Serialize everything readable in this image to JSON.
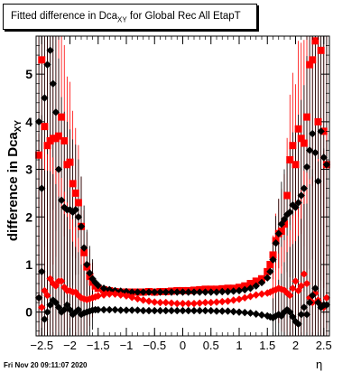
{
  "title": {
    "prefix": "Fitted difference in Dca",
    "sub": "XY",
    "suffix": " for Global Rec All EtapT"
  },
  "ylabel": {
    "prefix": "difference in Dca",
    "sub": "XY"
  },
  "xlabel": "η",
  "timestamp": "Fri Nov 20 09:11:07 2020",
  "chart_data": {
    "type": "scatter",
    "title": "Fitted difference in DcaXY for Global Rec All EtapT",
    "xlabel": "η",
    "ylabel": "difference in DcaXY",
    "xlim": [
      -2.6,
      2.6
    ],
    "ylim": [
      -0.5,
      5.8
    ],
    "xticks": [
      -2.5,
      -2,
      -1.5,
      -1,
      -0.5,
      0,
      0.5,
      1,
      1.5,
      2,
      2.5
    ],
    "xtick_labels": [
      "−2.5",
      "−2",
      "−1.5",
      "−1",
      "−0.5",
      "0",
      "0.5",
      "1",
      "1.5",
      "2",
      "2.5"
    ],
    "yticks": [
      0,
      1,
      2,
      3,
      4,
      5
    ],
    "ytick_labels": [
      "0",
      "1",
      "2",
      "3",
      "4",
      "5"
    ],
    "colors": {
      "red": "#ff0000",
      "black": "#000000"
    },
    "series": [
      {
        "color": "#ff0000",
        "marker": "square",
        "x": [
          -2.55,
          -2.5,
          -2.45,
          -2.4,
          -2.35,
          -2.3,
          -2.25,
          -2.2,
          -2.15,
          -2.1,
          -2.05,
          -2.0,
          -1.95,
          -1.9,
          -1.85,
          -1.8,
          -1.75,
          -1.7,
          -1.65,
          -1.6,
          -1.55,
          -1.5,
          -1.4,
          -1.3,
          -1.2,
          -1.1,
          -1.0,
          -0.9,
          -0.8,
          -0.7,
          -0.6,
          -0.5,
          -0.4,
          -0.3,
          -0.2,
          -0.1,
          0.0,
          0.1,
          0.2,
          0.3,
          0.4,
          0.5,
          0.6,
          0.7,
          0.8,
          0.9,
          1.0,
          1.1,
          1.2,
          1.3,
          1.4,
          1.5,
          1.55,
          1.6,
          1.65,
          1.7,
          1.75,
          1.8,
          1.85,
          1.9,
          1.95,
          2.0,
          2.05,
          2.1,
          2.15,
          2.2,
          2.25,
          2.3,
          2.35,
          2.4,
          2.45,
          2.5,
          2.55
        ],
        "y": [
          3.3,
          5.3,
          3.9,
          3.5,
          3.6,
          3.65,
          3.65,
          3.7,
          4.1,
          3.6,
          3.1,
          3.15,
          2.7,
          2.5,
          2.3,
          1.8,
          1.25,
          0.95,
          0.75,
          0.63,
          0.55,
          0.5,
          0.47,
          0.45,
          0.43,
          0.42,
          0.42,
          0.42,
          0.42,
          0.42,
          0.43,
          0.42,
          0.43,
          0.43,
          0.44,
          0.45,
          0.45,
          0.45,
          0.46,
          0.47,
          0.48,
          0.48,
          0.48,
          0.49,
          0.5,
          0.5,
          0.52,
          0.55,
          0.6,
          0.65,
          0.7,
          0.85,
          1.0,
          1.2,
          1.5,
          1.65,
          1.7,
          1.85,
          2.45,
          3.2,
          3.5,
          3.1,
          3.85,
          3.65,
          3.55,
          4.1,
          5.2,
          5.3,
          5.7,
          4.0,
          5.5,
          3.8,
          3.1
        ]
      },
      {
        "color": "#000000",
        "marker": "diamond",
        "x": [
          -2.55,
          -2.5,
          -2.45,
          -2.4,
          -2.35,
          -2.3,
          -2.25,
          -2.2,
          -2.15,
          -2.1,
          -2.05,
          -2.0,
          -1.95,
          -1.9,
          -1.85,
          -1.8,
          -1.75,
          -1.7,
          -1.65,
          -1.6,
          -1.55,
          -1.5,
          -1.4,
          -1.3,
          -1.2,
          -1.1,
          -1.0,
          -0.9,
          -0.8,
          -0.7,
          -0.6,
          -0.5,
          -0.4,
          -0.3,
          -0.2,
          -0.1,
          0.0,
          0.1,
          0.2,
          0.3,
          0.4,
          0.5,
          0.6,
          0.7,
          0.8,
          0.9,
          1.0,
          1.1,
          1.2,
          1.3,
          1.4,
          1.5,
          1.55,
          1.6,
          1.65,
          1.7,
          1.75,
          1.8,
          1.85,
          1.9,
          1.95,
          2.0,
          2.05,
          2.1,
          2.15,
          2.2,
          2.25,
          2.3,
          2.35,
          2.4,
          2.45,
          2.5,
          2.55
        ],
        "y": [
          4.0,
          2.6,
          4.5,
          5.2,
          5.5,
          4.8,
          4.2,
          3.0,
          2.35,
          2.2,
          2.15,
          2.15,
          2.1,
          2.15,
          2.0,
          1.8,
          1.35,
          1.0,
          0.82,
          0.7,
          0.62,
          0.56,
          0.5,
          0.47,
          0.45,
          0.44,
          0.43,
          0.42,
          0.42,
          0.42,
          0.42,
          0.42,
          0.42,
          0.42,
          0.42,
          0.42,
          0.42,
          0.42,
          0.42,
          0.42,
          0.42,
          0.42,
          0.42,
          0.43,
          0.43,
          0.44,
          0.45,
          0.47,
          0.5,
          0.55,
          0.62,
          0.72,
          0.85,
          1.1,
          1.45,
          1.65,
          1.85,
          1.95,
          2.05,
          2.1,
          2.25,
          2.2,
          2.3,
          2.45,
          2.6,
          3.05,
          3.4,
          3.75,
          3.35,
          2.75,
          3.8,
          3.25,
          3.1
        ]
      },
      {
        "color": "#ff0000",
        "marker": "diamond",
        "x": [
          -2.55,
          -2.5,
          -2.45,
          -2.4,
          -2.35,
          -2.3,
          -2.25,
          -2.2,
          -2.15,
          -2.1,
          -2.05,
          -2.0,
          -1.95,
          -1.9,
          -1.85,
          -1.8,
          -1.75,
          -1.7,
          -1.65,
          -1.6,
          -1.55,
          -1.5,
          -1.4,
          -1.3,
          -1.2,
          -1.1,
          -1.0,
          -0.9,
          -0.8,
          -0.7,
          -0.6,
          -0.5,
          -0.4,
          -0.3,
          -0.2,
          -0.1,
          0.0,
          0.1,
          0.2,
          0.3,
          0.4,
          0.5,
          0.6,
          0.7,
          0.8,
          0.9,
          1.0,
          1.1,
          1.2,
          1.3,
          1.4,
          1.5,
          1.55,
          1.6,
          1.65,
          1.7,
          1.75,
          1.8,
          1.85,
          1.9,
          1.95,
          2.0,
          2.05,
          2.1,
          2.15,
          2.2,
          2.25,
          2.3,
          2.35,
          2.4,
          2.45,
          2.5,
          2.55
        ],
        "y": [
          0.3,
          0.1,
          0.45,
          0.35,
          0.7,
          0.6,
          0.55,
          0.65,
          0.65,
          0.52,
          0.45,
          0.45,
          0.42,
          0.42,
          0.35,
          0.3,
          0.28,
          0.26,
          0.28,
          0.3,
          0.32,
          0.34,
          0.36,
          0.38,
          0.38,
          0.36,
          0.34,
          0.31,
          0.28,
          0.25,
          0.23,
          0.21,
          0.2,
          0.2,
          0.19,
          0.18,
          0.18,
          0.18,
          0.18,
          0.19,
          0.2,
          0.2,
          0.21,
          0.22,
          0.23,
          0.25,
          0.27,
          0.3,
          0.33,
          0.36,
          0.38,
          0.4,
          0.42,
          0.45,
          0.47,
          0.5,
          0.48,
          0.46,
          0.4,
          0.35,
          0.5,
          0.65,
          0.45,
          0.55,
          0.8,
          0.6,
          0.3,
          0.2,
          0.4,
          0.25,
          0.15,
          0.1,
          0.3
        ]
      },
      {
        "color": "#000000",
        "marker": "diamond",
        "x": [
          -2.55,
          -2.5,
          -2.45,
          -2.4,
          -2.35,
          -2.3,
          -2.25,
          -2.2,
          -2.15,
          -2.1,
          -2.05,
          -2.0,
          -1.95,
          -1.9,
          -1.85,
          -1.8,
          -1.75,
          -1.7,
          -1.65,
          -1.6,
          -1.55,
          -1.5,
          -1.4,
          -1.3,
          -1.2,
          -1.1,
          -1.0,
          -0.9,
          -0.8,
          -0.7,
          -0.6,
          -0.5,
          -0.4,
          -0.3,
          -0.2,
          -0.1,
          0.0,
          0.1,
          0.2,
          0.3,
          0.4,
          0.5,
          0.6,
          0.7,
          0.8,
          0.9,
          1.0,
          1.1,
          1.2,
          1.3,
          1.4,
          1.5,
          1.55,
          1.6,
          1.65,
          1.7,
          1.75,
          1.8,
          1.85,
          1.9,
          1.95,
          2.0,
          2.05,
          2.1,
          2.15,
          2.2,
          2.25,
          2.3,
          2.35,
          2.4,
          2.45,
          2.5,
          2.55
        ],
        "y": [
          0.3,
          0.85,
          -0.15,
          0.0,
          0.15,
          0.25,
          0.2,
          0.1,
          0.0,
          0.05,
          0.15,
          0.05,
          -0.05,
          0.0,
          0.05,
          -0.05,
          -0.02,
          0.0,
          0.02,
          0.04,
          0.05,
          0.05,
          0.05,
          0.05,
          0.05,
          0.04,
          0.04,
          0.04,
          0.04,
          0.03,
          0.03,
          0.03,
          0.03,
          0.03,
          0.03,
          0.03,
          0.03,
          0.03,
          0.03,
          0.03,
          0.03,
          0.03,
          0.02,
          0.02,
          0.02,
          0.01,
          0.0,
          -0.01,
          -0.02,
          -0.04,
          -0.06,
          -0.08,
          -0.1,
          -0.12,
          -0.08,
          -0.05,
          -0.08,
          0.0,
          0.05,
          0.0,
          -0.1,
          -0.2,
          -0.25,
          -0.05,
          0.1,
          -0.05,
          0.2,
          0.35,
          0.5,
          0.2,
          0.1,
          0.15,
          0.15
        ]
      }
    ]
  }
}
